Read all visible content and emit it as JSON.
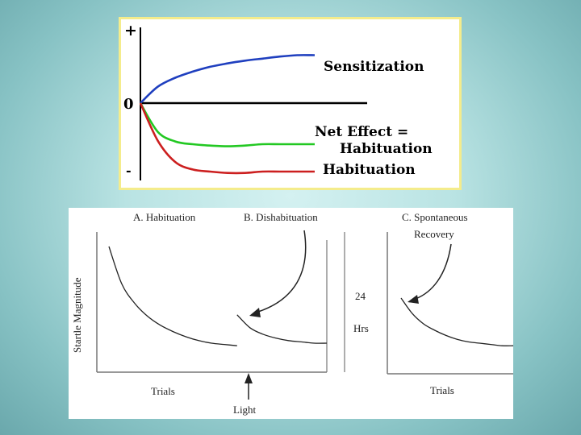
{
  "colors": {
    "background": "#a9d8d8",
    "panel_border": "#f4ec8c",
    "sensitization": "#1f3fbf",
    "net_effect": "#22c822",
    "habituation": "#cc1f1f"
  },
  "top_panel": {
    "y_plus": "+",
    "y_zero": "0",
    "y_minus": "-",
    "labels": {
      "sensitization": "Sensitization",
      "net_effect_line1": "Net Effect =",
      "net_effect_line2": "Habituation",
      "habituation": "Habituation"
    }
  },
  "bottom_panel": {
    "title_a": "A. Habituation",
    "title_b": "B. Dishabituation",
    "title_c_line1": "C. Spontaneous",
    "title_c_line2": "Recovery",
    "ylabel": "Startle Magnitude",
    "gap_number": "24",
    "gap_unit": "Hrs",
    "xlabel_left": "Trials",
    "xlabel_right": "Trials",
    "stimulus_label": "Light"
  },
  "chart_data": [
    {
      "type": "line",
      "ylim": [
        -1,
        1
      ],
      "series": [
        {
          "name": "Sensitization",
          "x": [
            0,
            1,
            2,
            3,
            4,
            5,
            6,
            7,
            8,
            9,
            10
          ],
          "values": [
            0,
            0.24,
            0.37,
            0.46,
            0.53,
            0.58,
            0.62,
            0.65,
            0.68,
            0.7,
            0.7
          ]
        },
        {
          "name": "Net Effect = Habituation",
          "x": [
            0,
            1,
            2,
            3,
            4,
            5,
            6,
            7,
            8,
            9,
            10
          ],
          "values": [
            0,
            -0.42,
            -0.56,
            -0.6,
            -0.62,
            -0.63,
            -0.62,
            -0.6,
            -0.6,
            -0.6,
            -0.6
          ]
        },
        {
          "name": "Habituation",
          "x": [
            0,
            1,
            2,
            3,
            4,
            5,
            6,
            7,
            8,
            9,
            10
          ],
          "values": [
            0,
            -0.55,
            -0.86,
            -0.97,
            -1.0,
            -1.02,
            -1.02,
            -1.0,
            -1.0,
            -1.0,
            -1.0
          ]
        }
      ]
    },
    {
      "type": "line",
      "xlabel": "Trials",
      "ylabel": "Startle Magnitude",
      "ylim": [
        0,
        1
      ],
      "series": [
        {
          "x": [
            0,
            1,
            2,
            3,
            4,
            5,
            6,
            7,
            8,
            9,
            10
          ],
          "values": [
            0.95,
            0.66,
            0.51,
            0.41,
            0.34,
            0.29,
            0.25,
            0.22,
            0.2,
            0.19,
            0.18
          ]
        },
        {
          "x": [
            10,
            11,
            12,
            13,
            14,
            15,
            16,
            17
          ],
          "values": [
            0.42,
            0.32,
            0.27,
            0.24,
            0.22,
            0.21,
            0.2,
            0.2
          ]
        }
      ]
    },
    {
      "type": "line",
      "xlabel": "Trials",
      "ylim": [
        0,
        1
      ],
      "series": [
        {
          "x": [
            0,
            1,
            2,
            3,
            4,
            5,
            6,
            7,
            8,
            9,
            10
          ],
          "values": [
            0.55,
            0.43,
            0.35,
            0.3,
            0.26,
            0.23,
            0.21,
            0.2,
            0.19,
            0.18,
            0.18
          ]
        }
      ]
    }
  ]
}
